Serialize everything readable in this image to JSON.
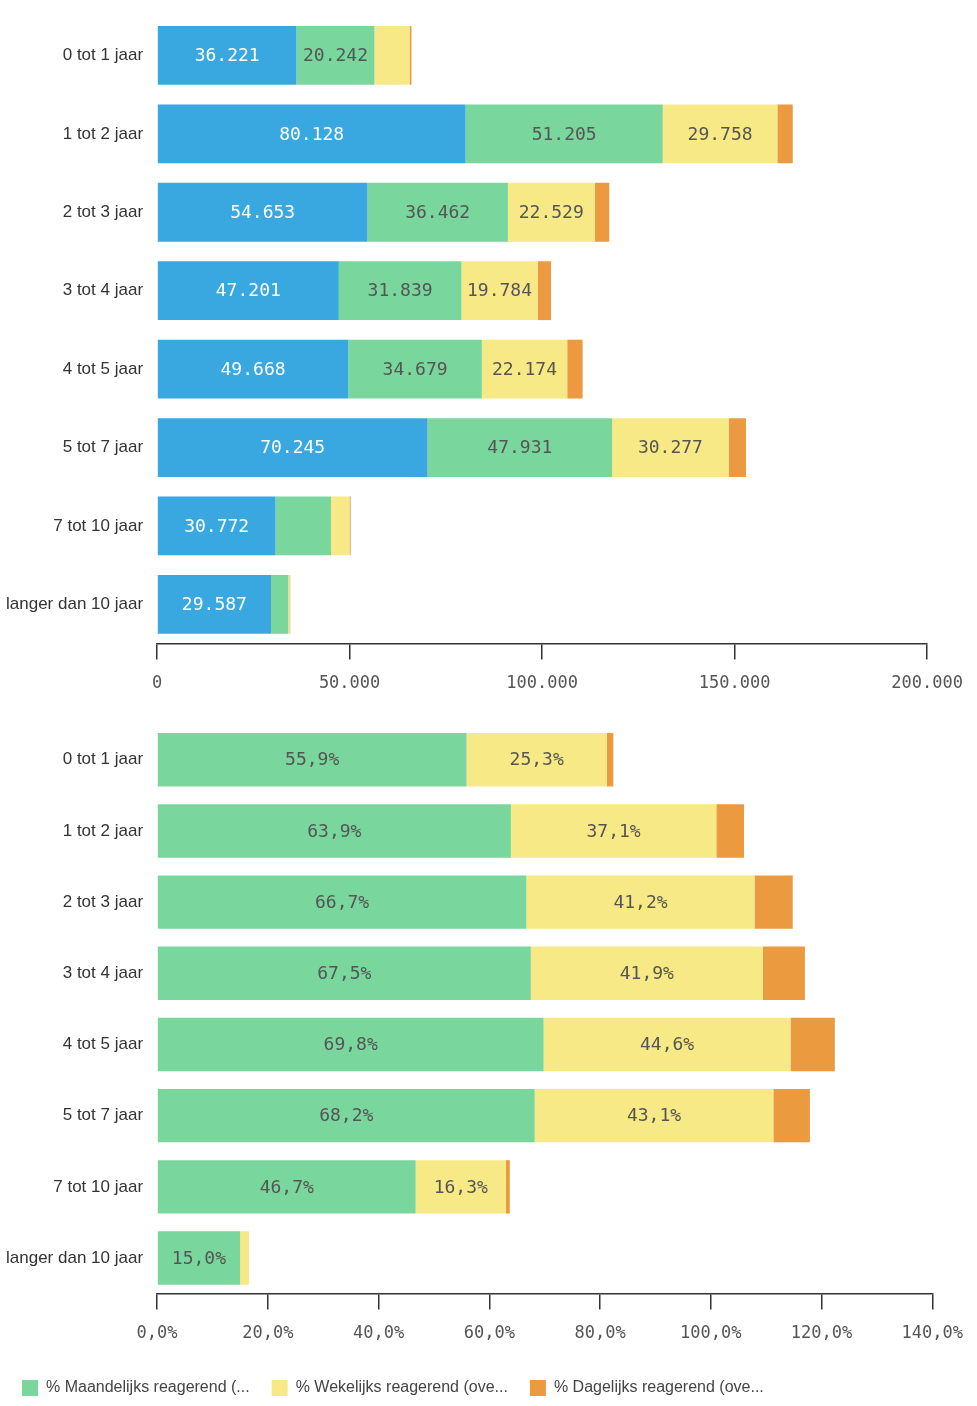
{
  "chart_data": [
    {
      "type": "bar",
      "orientation": "horizontal",
      "stacked": true,
      "grid": false,
      "legend": false,
      "categories": [
        "0 tot 1 jaar",
        "1 tot 2 jaar",
        "2 tot 3 jaar",
        "3 tot 4 jaar",
        "4 tot 5 jaar",
        "5 tot 7 jaar",
        "7 tot 10 jaar",
        "langer dan 10 jaar"
      ],
      "xlim": [
        0,
        200000
      ],
      "xticks": [
        0,
        {
          "value": 50000,
          "label": "50.000"
        },
        {
          "value": 100000,
          "label": "100.000"
        },
        {
          "value": 150000,
          "label": "150.000"
        },
        {
          "value": 200000,
          "label": "200.000"
        }
      ],
      "series": [
        {
          "color": "#3aa8e0",
          "values": [
            36221,
            80128,
            54653,
            47201,
            49668,
            70245,
            30772,
            29587
          ],
          "value_labels": [
            "36.221",
            "80.128",
            "54.653",
            "47.201",
            "49.668",
            "70.245",
            "30.772",
            "29.587"
          ]
        },
        {
          "color": "#79d69c",
          "values": [
            20242,
            51205,
            36462,
            31839,
            34679,
            47931,
            14400,
            4500
          ],
          "value_labels": [
            "20.242",
            "51.205",
            "36.462",
            "31.839",
            "34.679",
            "47.931",
            null,
            null
          ]
        },
        {
          "color": "#f7e985",
          "values": [
            9100,
            29758,
            22529,
            19784,
            22174,
            30277,
            4800,
            300
          ],
          "value_labels": [
            null,
            "29.758",
            "22.529",
            "19.784",
            "22.174",
            "30.277",
            null,
            null
          ]
        },
        {
          "color": "#ec9a3f",
          "values": [
            500,
            4000,
            3800,
            3500,
            4000,
            4500,
            300,
            200
          ]
        }
      ]
    },
    {
      "type": "bar",
      "orientation": "horizontal",
      "stacked": true,
      "grid": false,
      "legend": "bottom",
      "categories": [
        "0 tot 1 jaar",
        "1 tot 2 jaar",
        "2 tot 3 jaar",
        "3 tot 4 jaar",
        "4 tot 5 jaar",
        "5 tot 7 jaar",
        "7 tot 10 jaar",
        "langer dan 10 jaar"
      ],
      "xlim": [
        0,
        140
      ],
      "xticks": [
        {
          "value": 0,
          "label": "0,0%"
        },
        {
          "value": 20,
          "label": "20,0%"
        },
        {
          "value": 40,
          "label": "40,0%"
        },
        {
          "value": 60,
          "label": "60,0%"
        },
        {
          "value": 80,
          "label": "80,0%"
        },
        {
          "value": 100,
          "label": "100,0%"
        },
        {
          "value": 120,
          "label": "120,0%"
        },
        {
          "value": 140,
          "label": "140,0%"
        }
      ],
      "series": [
        {
          "name": "% Maandelijks reagerend (...",
          "color": "#79d69c",
          "values": [
            55.9,
            63.9,
            66.7,
            67.5,
            69.8,
            68.2,
            46.7,
            15.0
          ],
          "value_labels": [
            "55,9%",
            "63,9%",
            "66,7%",
            "67,5%",
            "69,8%",
            "68,2%",
            "46,7%",
            "15,0%"
          ]
        },
        {
          "name": "% Wekelijks reagerend (ove...",
          "color": "#f7e985",
          "values": [
            25.3,
            37.1,
            41.2,
            41.9,
            44.6,
            43.1,
            16.3,
            1.6
          ],
          "value_labels": [
            "25,3%",
            "37,1%",
            "41,2%",
            "41,9%",
            "44,6%",
            "43,1%",
            "16,3%",
            null
          ]
        },
        {
          "name": "% Dagelijks reagerend (ove...",
          "color": "#ec9a3f",
          "values": [
            1.2,
            5.0,
            6.9,
            7.6,
            8.0,
            6.6,
            0.7,
            null
          ]
        }
      ]
    }
  ]
}
